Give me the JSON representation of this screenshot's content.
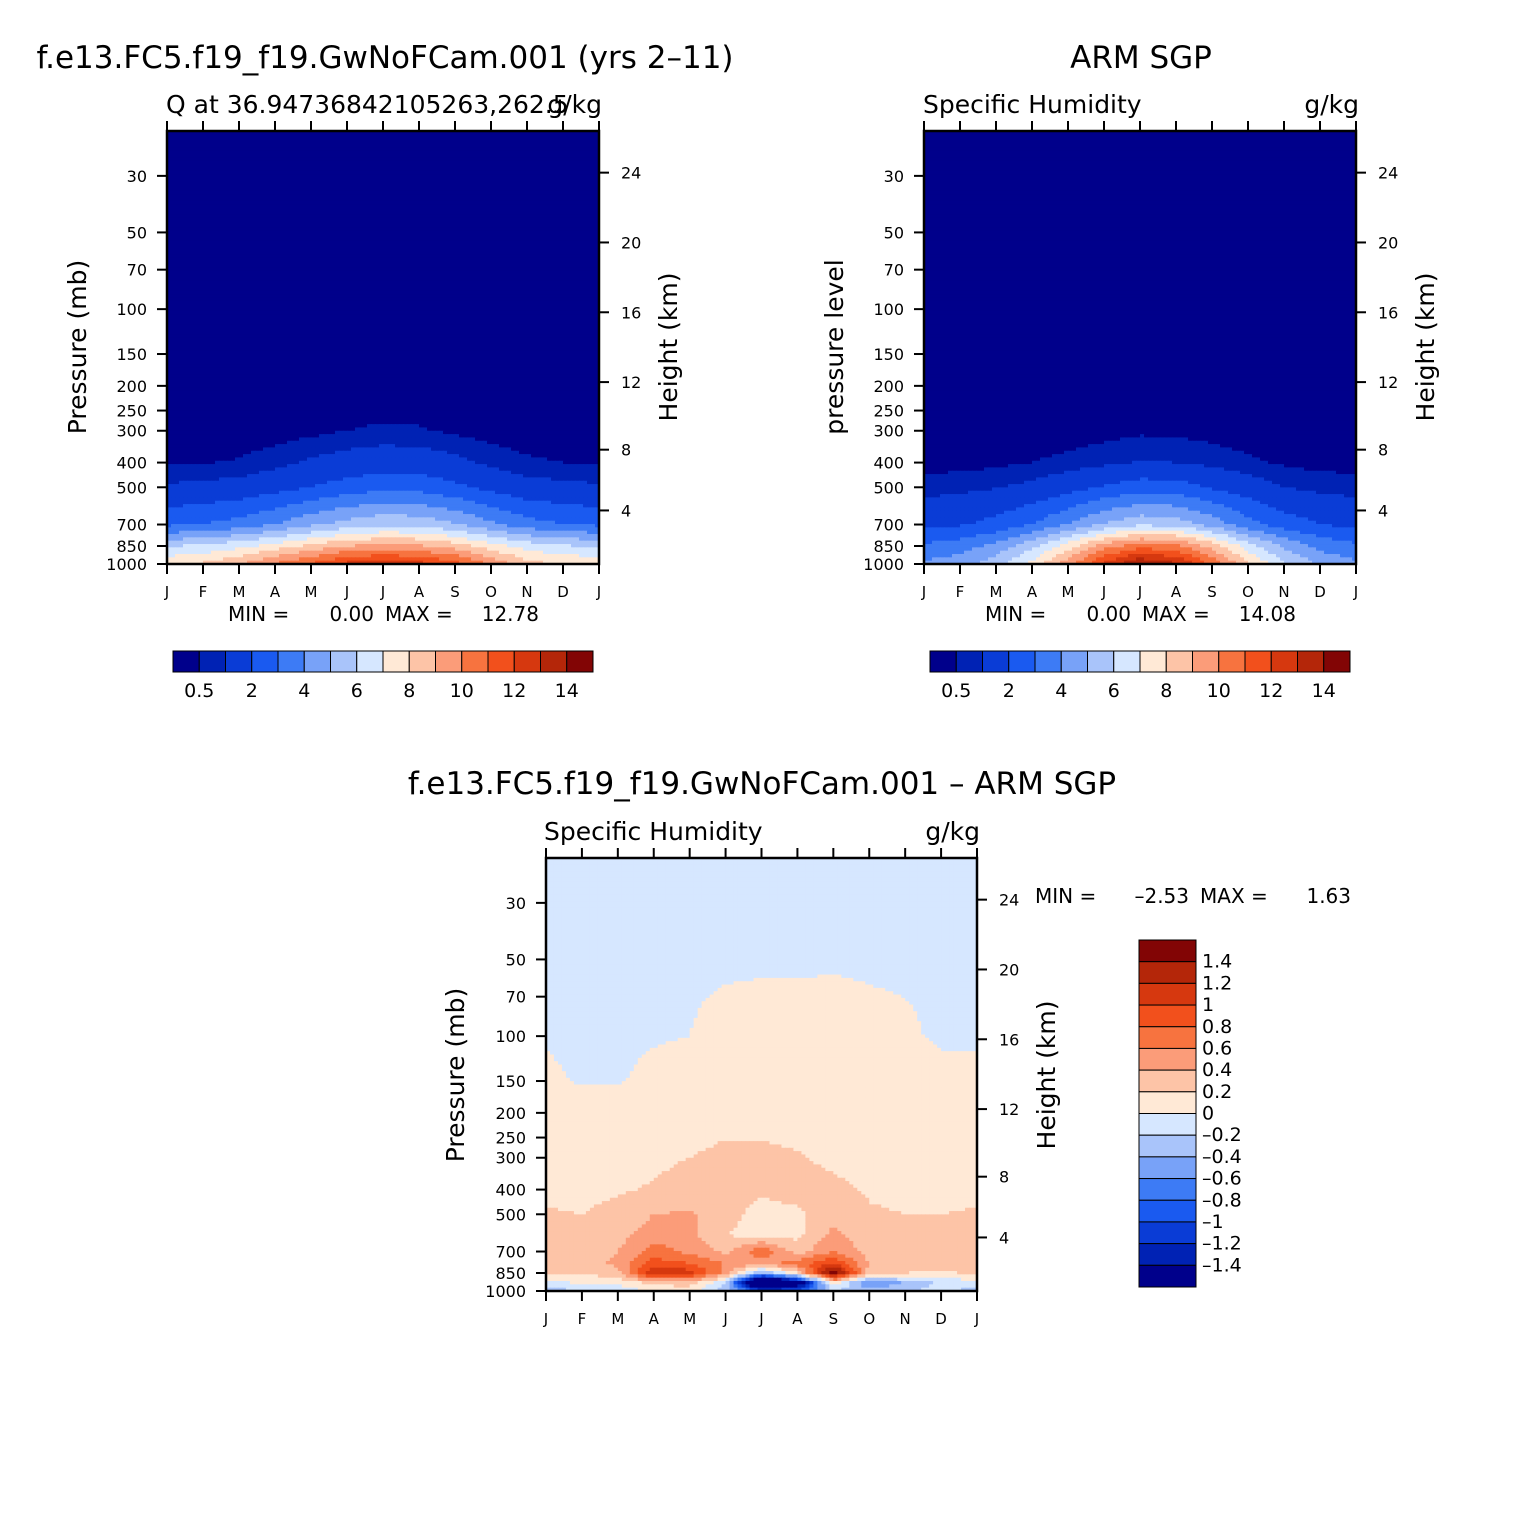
{
  "chart_data": [
    {
      "type": "heatmap",
      "panel": "model",
      "title": "f.e13.FC5.f19_f19.GwNoFCam.001 (yrs 2–11)",
      "left_subtitle": "Q at 36.94736842105263,262.5",
      "right_subtitle": "g/kg",
      "ylabel": "Pressure (mb)",
      "y2label": "Height (km)",
      "x_ticks": [
        "J",
        "F",
        "M",
        "A",
        "M",
        "J",
        "J",
        "A",
        "S",
        "O",
        "N",
        "D",
        "J"
      ],
      "pressure_ticks": [
        30,
        50,
        70,
        100,
        150,
        200,
        250,
        300,
        400,
        500,
        700,
        850,
        1000
      ],
      "height_ticks": [
        24,
        20,
        16,
        12,
        8,
        4
      ],
      "ylim": [
        1000,
        20
      ],
      "stats": {
        "min_label": "MIN =",
        "min": "0.00",
        "max_label": "MAX =",
        "max": "12.78"
      },
      "contour_levels": [
        0.5,
        1,
        2,
        3,
        4,
        5,
        6,
        7,
        8,
        9,
        10,
        11,
        12,
        13,
        14
      ],
      "colorbar_labels": [
        "0.5",
        "2",
        "4",
        "6",
        "8",
        "10",
        "12",
        "14"
      ],
      "colors": [
        "#00008b",
        "#0022b4",
        "#0a3cd6",
        "#1a5af0",
        "#3d7bf5",
        "#78a2f8",
        "#a9c4fa",
        "#d6e7ff",
        "#ffe9d6",
        "#fdc4a7",
        "#fb9c79",
        "#f7733f",
        "#f2501c",
        "#d6380f",
        "#b42609",
        "#820505"
      ],
      "rows_p": [
        1000,
        850,
        700,
        500,
        400,
        300,
        200,
        100,
        50,
        30,
        20
      ],
      "values": [
        [
          7.8,
          8.2,
          8.9,
          10.2,
          11.2,
          12.3,
          12.78,
          12.4,
          11.5,
          9.8,
          8.4,
          7.9,
          7.8
        ],
        [
          5.9,
          6.2,
          6.7,
          7.4,
          8.2,
          9.0,
          9.2,
          9.1,
          8.5,
          7.4,
          6.6,
          6.1,
          5.9
        ],
        [
          2.8,
          3.0,
          3.4,
          4.0,
          4.8,
          5.4,
          5.8,
          5.7,
          5.1,
          4.2,
          3.4,
          3.0,
          2.8
        ],
        [
          1.1,
          1.2,
          1.3,
          1.6,
          2.0,
          2.4,
          2.7,
          2.6,
          2.2,
          1.7,
          1.3,
          1.2,
          1.1
        ],
        [
          0.45,
          0.48,
          0.55,
          0.8,
          1.1,
          1.35,
          1.5,
          1.45,
          1.2,
          0.85,
          0.6,
          0.5,
          0.45
        ],
        [
          0.12,
          0.13,
          0.16,
          0.23,
          0.35,
          0.5,
          0.58,
          0.55,
          0.4,
          0.26,
          0.17,
          0.14,
          0.12
        ],
        [
          0.03,
          0.03,
          0.04,
          0.06,
          0.08,
          0.1,
          0.12,
          0.11,
          0.08,
          0.06,
          0.04,
          0.03,
          0.03
        ],
        [
          0,
          0,
          0,
          0,
          0,
          0,
          0,
          0,
          0,
          0,
          0,
          0,
          0
        ],
        [
          0,
          0,
          0,
          0,
          0,
          0,
          0,
          0,
          0,
          0,
          0,
          0,
          0
        ],
        [
          0,
          0,
          0,
          0,
          0,
          0,
          0,
          0,
          0,
          0,
          0,
          0,
          0
        ],
        [
          0,
          0,
          0,
          0,
          0,
          0,
          0,
          0,
          0,
          0,
          0,
          0,
          0
        ]
      ]
    },
    {
      "type": "heatmap",
      "panel": "obs",
      "title": "ARM SGP",
      "left_subtitle": "Specific Humidity",
      "right_subtitle": "g/kg",
      "ylabel": "pressure level",
      "y2label": "Height (km)",
      "x_ticks": [
        "J",
        "F",
        "M",
        "A",
        "M",
        "J",
        "J",
        "A",
        "S",
        "O",
        "N",
        "D",
        "J"
      ],
      "pressure_ticks": [
        30,
        50,
        70,
        100,
        150,
        200,
        250,
        300,
        400,
        500,
        700,
        850,
        1000
      ],
      "height_ticks": [
        24,
        20,
        16,
        12,
        8,
        4
      ],
      "ylim": [
        1000,
        20
      ],
      "stats": {
        "min_label": "MIN =",
        "min": "0.00",
        "max_label": "MAX =",
        "max": "14.08"
      },
      "contour_levels": [
        0.5,
        1,
        2,
        3,
        4,
        5,
        6,
        7,
        8,
        9,
        10,
        11,
        12,
        13,
        14
      ],
      "colorbar_labels": [
        "0.5",
        "2",
        "4",
        "6",
        "8",
        "10",
        "12",
        "14"
      ],
      "colors": [
        "#00008b",
        "#0022b4",
        "#0a3cd6",
        "#1a5af0",
        "#3d7bf5",
        "#78a2f8",
        "#a9c4fa",
        "#d6e7ff",
        "#ffe9d6",
        "#fdc4a7",
        "#fb9c79",
        "#f7733f",
        "#f2501c",
        "#d6380f",
        "#b42609",
        "#820505"
      ],
      "rows_p": [
        1000,
        850,
        700,
        500,
        400,
        300,
        200,
        100,
        50,
        30,
        20
      ],
      "values": [
        [
          4.2,
          4.6,
          5.6,
          7.3,
          9.6,
          12.2,
          14.08,
          13.2,
          10.8,
          8.2,
          6.2,
          4.8,
          4.2
        ],
        [
          3.2,
          3.5,
          4.3,
          5.7,
          7.5,
          9.5,
          10.6,
          10.2,
          8.6,
          6.5,
          4.8,
          3.7,
          3.2
        ],
        [
          1.7,
          1.9,
          2.3,
          3.0,
          4.0,
          5.1,
          5.8,
          5.6,
          4.6,
          3.4,
          2.5,
          2.0,
          1.7
        ],
        [
          0.75,
          0.8,
          0.95,
          1.2,
          1.6,
          2.1,
          2.5,
          2.4,
          1.9,
          1.4,
          1.0,
          0.8,
          0.75
        ],
        [
          0.3,
          0.32,
          0.38,
          0.5,
          0.65,
          0.85,
          1.05,
          1.0,
          0.8,
          0.6,
          0.42,
          0.33,
          0.3
        ],
        [
          0.1,
          0.1,
          0.12,
          0.16,
          0.22,
          0.3,
          0.4,
          0.38,
          0.3,
          0.22,
          0.14,
          0.11,
          0.1
        ],
        [
          0.03,
          0.03,
          0.03,
          0.04,
          0.05,
          0.07,
          0.09,
          0.09,
          0.07,
          0.05,
          0.04,
          0.03,
          0.03
        ],
        [
          0,
          0,
          0,
          0,
          0,
          0,
          0,
          0,
          0,
          0,
          0,
          0,
          0
        ],
        [
          0,
          0,
          0,
          0,
          0,
          0,
          0,
          0,
          0,
          0,
          0,
          0,
          0
        ],
        [
          0,
          0,
          0,
          0,
          0,
          0,
          0,
          0,
          0,
          0,
          0,
          0,
          0
        ],
        [
          0,
          0,
          0,
          0,
          0,
          0,
          0,
          0,
          0,
          0,
          0,
          0,
          0
        ]
      ]
    },
    {
      "type": "heatmap",
      "panel": "diff",
      "title": "f.e13.FC5.f19_f19.GwNoFCam.001 – ARM SGP",
      "left_subtitle": "Specific Humidity",
      "right_subtitle": "g/kg",
      "ylabel": "Pressure (mb)",
      "y2label": "Height (km)",
      "x_ticks": [
        "J",
        "F",
        "M",
        "A",
        "M",
        "J",
        "J",
        "A",
        "S",
        "O",
        "N",
        "D",
        "J"
      ],
      "pressure_ticks": [
        30,
        50,
        70,
        100,
        150,
        200,
        250,
        300,
        400,
        500,
        700,
        850,
        1000
      ],
      "height_ticks": [
        24,
        20,
        16,
        12,
        8,
        4
      ],
      "ylim": [
        1000,
        20
      ],
      "stats": {
        "min_label": "MIN =",
        "min": "–2.53",
        "max_label": "MAX =",
        "max": "1.63"
      },
      "contour_levels": [
        -1.4,
        -1.2,
        -1,
        -0.8,
        -0.6,
        -0.4,
        -0.2,
        0,
        0.2,
        0.4,
        0.6,
        0.8,
        1,
        1.2,
        1.4
      ],
      "colorbar_labels": [
        "1.4",
        "1.2",
        "1",
        "0.8",
        "0.6",
        "0.4",
        "0.2",
        "0",
        "–0.2",
        "–0.4",
        "–0.6",
        "–0.8",
        "–1",
        "–1.2",
        "–1.4"
      ],
      "colors": [
        "#00008b",
        "#0022b4",
        "#0a3cd6",
        "#1a5af0",
        "#3d7bf5",
        "#78a2f8",
        "#a9c4fa",
        "#d6e7ff",
        "#ffe9d6",
        "#fdc4a7",
        "#fb9c79",
        "#f7733f",
        "#f2501c",
        "#d6380f",
        "#b42609",
        "#820505"
      ],
      "rows_p": [
        1000,
        930,
        850,
        780,
        700,
        600,
        500,
        400,
        300,
        200,
        150,
        100,
        50,
        30,
        20
      ],
      "values": [
        [
          -0.3,
          -0.2,
          -0.15,
          0.05,
          0.1,
          -0.3,
          -1.0,
          -0.9,
          -0.2,
          -0.3,
          -0.25,
          -0.1,
          -0.3
        ],
        [
          -0.1,
          0.05,
          0.05,
          0.25,
          0.3,
          -0.2,
          -2.53,
          -1.8,
          0.1,
          -0.6,
          -0.4,
          -0.15,
          -0.1
        ],
        [
          0.25,
          0.2,
          0.35,
          1.2,
          1.1,
          0.5,
          -0.4,
          0.2,
          1.63,
          0.3,
          0.2,
          0.15,
          0.25
        ],
        [
          0.35,
          0.3,
          0.45,
          0.9,
          0.8,
          0.6,
          0.5,
          0.7,
          1.0,
          0.4,
          0.3,
          0.3,
          0.35
        ],
        [
          0.3,
          0.25,
          0.4,
          0.7,
          0.55,
          0.35,
          0.75,
          0.3,
          0.6,
          0.3,
          0.25,
          0.25,
          0.3
        ],
        [
          0.25,
          0.22,
          0.32,
          0.5,
          0.45,
          0.2,
          0.1,
          0.15,
          0.45,
          0.28,
          0.22,
          0.22,
          0.25
        ],
        [
          0.22,
          0.2,
          0.25,
          0.4,
          0.42,
          0.3,
          0.1,
          0.15,
          0.35,
          0.22,
          0.2,
          0.2,
          0.22
        ],
        [
          0.15,
          0.15,
          0.18,
          0.22,
          0.3,
          0.35,
          0.25,
          0.3,
          0.25,
          0.18,
          0.15,
          0.15,
          0.15
        ],
        [
          0.1,
          0.1,
          0.12,
          0.15,
          0.2,
          0.25,
          0.25,
          0.22,
          0.15,
          0.12,
          0.1,
          0.1,
          0.1
        ],
        [
          0.06,
          0.06,
          0.07,
          0.08,
          0.1,
          0.12,
          0.12,
          0.1,
          0.09,
          0.08,
          0.07,
          0.06,
          0.06
        ],
        [
          0.02,
          -0.01,
          -0.01,
          0.03,
          0.05,
          0.07,
          0.08,
          0.07,
          0.07,
          0.06,
          0.04,
          0.02,
          0.02
        ],
        [
          -0.01,
          -0.02,
          -0.02,
          -0.01,
          0.0,
          0.02,
          0.03,
          0.03,
          0.04,
          0.02,
          0.01,
          -0.01,
          -0.01
        ],
        [
          -0.01,
          -0.01,
          -0.01,
          -0.01,
          -0.01,
          -0.01,
          -0.01,
          -0.01,
          -0.01,
          -0.01,
          -0.01,
          -0.01,
          -0.01
        ],
        [
          -0.01,
          -0.01,
          -0.01,
          -0.01,
          -0.01,
          -0.01,
          -0.01,
          -0.01,
          -0.01,
          -0.01,
          -0.01,
          -0.01,
          -0.01
        ],
        [
          -0.01,
          -0.01,
          -0.01,
          -0.01,
          -0.01,
          -0.01,
          -0.01,
          -0.01,
          -0.01,
          -0.01,
          -0.01,
          -0.01,
          -0.01
        ]
      ]
    }
  ]
}
